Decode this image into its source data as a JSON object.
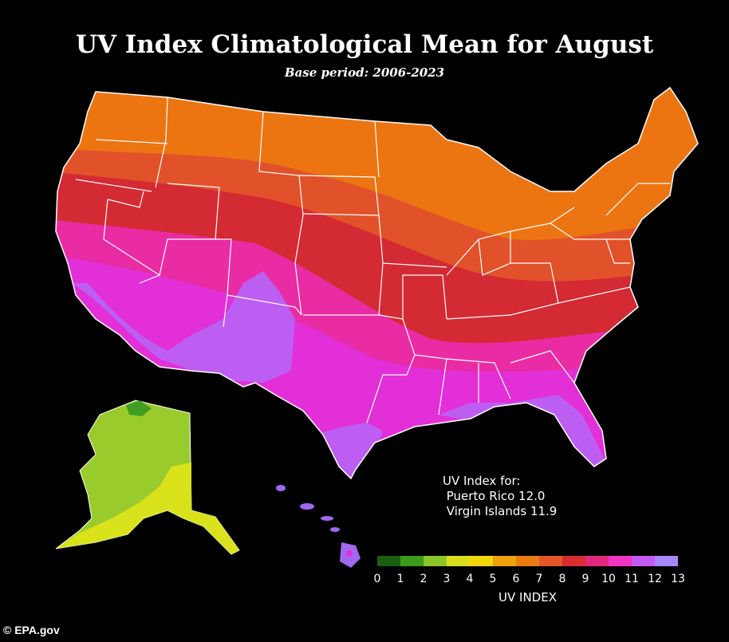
{
  "title": "UV Index Climatological Mean for August",
  "subtitle": "Base period: 2006-2023",
  "islands": {
    "heading": "UV Index for:",
    "puerto_rico": " Puerto Rico 12.0",
    "virgin_islands": " Virgin Islands 11.9"
  },
  "legend": {
    "label": "UV INDEX",
    "ticks": [
      "0",
      "1",
      "2",
      "3",
      "4",
      "5",
      "6",
      "7",
      "8",
      "9",
      "10",
      "11",
      "12",
      "13"
    ],
    "colors": [
      "#1c5e10",
      "#3c9a1c",
      "#8cc62a",
      "#d9de1a",
      "#f4d80c",
      "#f0a20a",
      "#ec7c10",
      "#e4562a",
      "#d62e30",
      "#e0287c",
      "#f034c4",
      "#c65af4",
      "#a688fc"
    ]
  },
  "map_colors": {
    "uv_6": "#ec7512",
    "uv_7": "#e2522a",
    "uv_8": "#d32a33",
    "uv_9": "#e92ca3",
    "uv_10": "#e22fd8",
    "uv_11": "#bd5ef2",
    "alaska_2": "#9acb2c",
    "alaska_3": "#d9e21a",
    "alaska_1": "#3f9e22",
    "hawaii": "#a068f0",
    "hawaii_peak": "#e22fd8",
    "boundaries": "#ffffff"
  },
  "credit": "© EPA.gov"
}
